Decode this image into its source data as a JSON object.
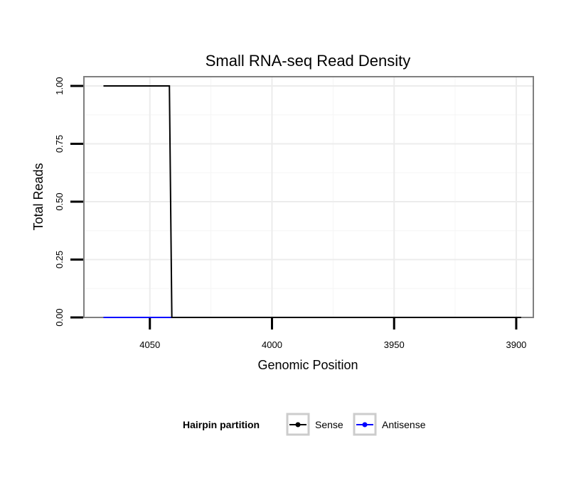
{
  "chart_data": {
    "type": "line",
    "title": "Small RNA-seq Read Density",
    "xlabel": "Genomic Position",
    "ylabel": "Total Reads",
    "x_reversed": true,
    "xlim": [
      4077,
      3893
    ],
    "ylim": [
      0,
      1.04
    ],
    "x_ticks": [
      4050,
      4000,
      3950,
      3900
    ],
    "x_tick_labels": [
      "4050",
      "4000",
      "3950",
      "3900"
    ],
    "y_ticks": [
      0,
      0.25,
      0.5,
      0.75,
      1.0
    ],
    "y_tick_labels": [
      "0.00",
      "0.25",
      "0.50",
      "0.75",
      "1.00"
    ],
    "grid": true,
    "legend": {
      "title": "Hairpin partition",
      "position": "bottom"
    },
    "series": [
      {
        "name": "Sense",
        "color": "#000000",
        "x": [
          4069,
          4042,
          4041,
          3898
        ],
        "y": [
          1.0,
          1.0,
          0.0,
          0.0
        ]
      },
      {
        "name": "Antisense",
        "color": "#0000ff",
        "x": [
          4069,
          4041
        ],
        "y": [
          0.0,
          0.0
        ]
      }
    ]
  }
}
